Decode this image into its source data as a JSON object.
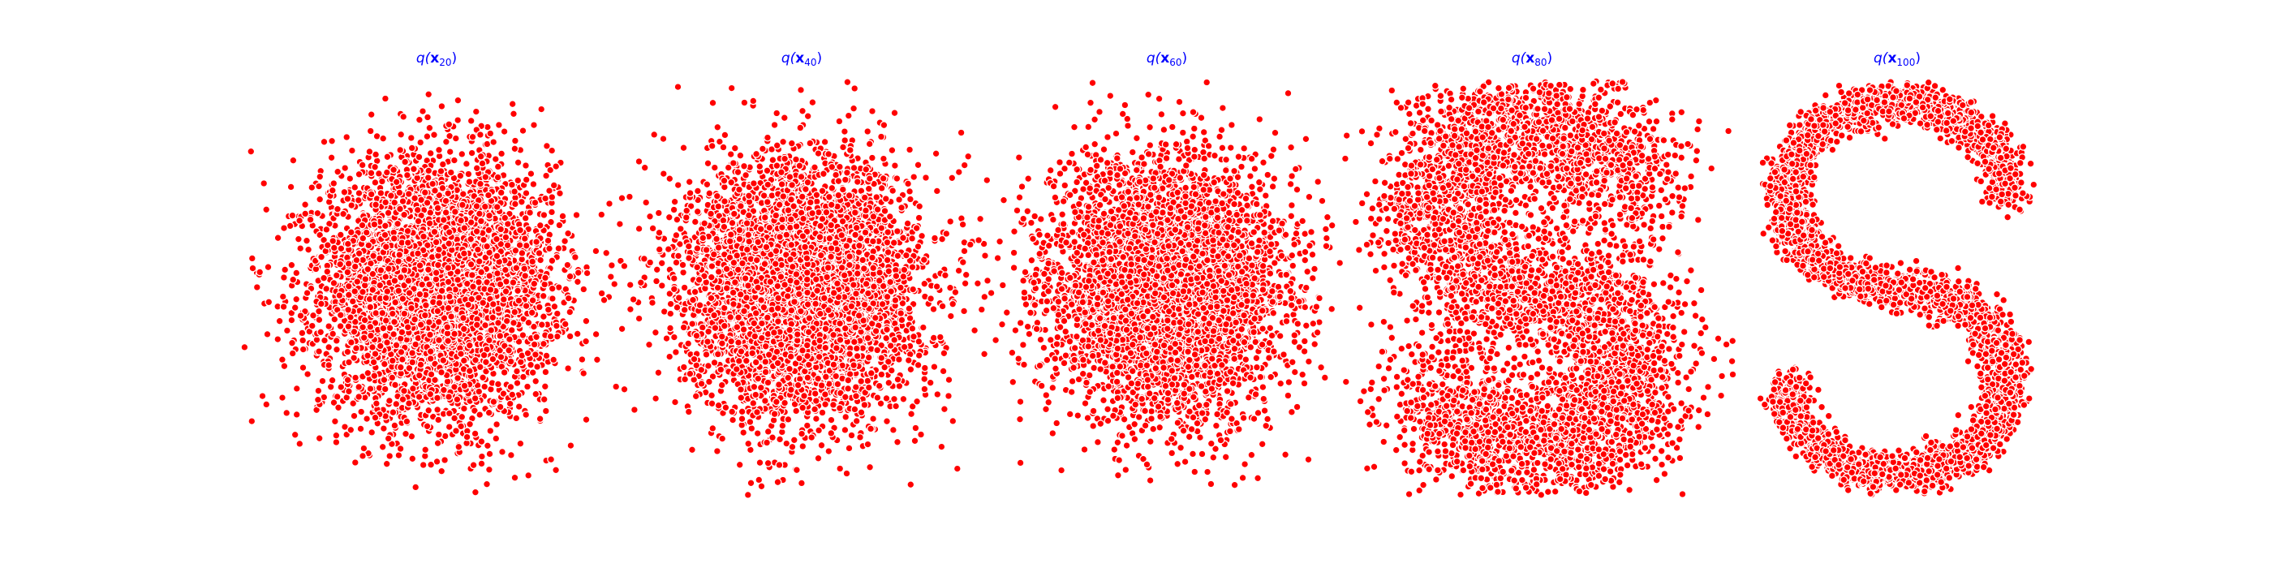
{
  "figure": {
    "marker_color": "#ff0000",
    "marker_edge_color": "#ffffff",
    "title_color": "#0000ff"
  },
  "chart_data": [
    {
      "type": "scatter",
      "title_prefix": "q(",
      "title_sym": "x",
      "title_sub": "20",
      "title_suffix": ")",
      "distribution": "gaussian-blob",
      "approx_points": 5000,
      "xlim": [
        -1.8,
        1.8
      ],
      "ylim": [
        -1.9,
        1.9
      ],
      "grid": false,
      "axes_visible": false
    },
    {
      "type": "scatter",
      "title_prefix": "q(",
      "title_sym": "x",
      "title_sub": "40",
      "title_suffix": ")",
      "distribution": "gaussian-blob",
      "approx_points": 5000,
      "xlim": [
        -1.8,
        1.8
      ],
      "ylim": [
        -1.9,
        1.9
      ],
      "grid": false,
      "axes_visible": false
    },
    {
      "type": "scatter",
      "title_prefix": "q(",
      "title_sym": "x",
      "title_sub": "60",
      "title_suffix": ")",
      "distribution": "gaussian-blob",
      "approx_points": 5000,
      "xlim": [
        -1.8,
        1.8
      ],
      "ylim": [
        -1.9,
        1.9
      ],
      "grid": false,
      "axes_visible": false
    },
    {
      "type": "scatter",
      "title_prefix": "q(",
      "title_sym": "x",
      "title_sub": "80",
      "title_suffix": ")",
      "distribution": "blob-with-s-hint",
      "approx_points": 5000,
      "xlim": [
        -1.8,
        1.8
      ],
      "ylim": [
        -1.9,
        1.9
      ],
      "grid": false,
      "axes_visible": false
    },
    {
      "type": "scatter",
      "title_prefix": "q(",
      "title_sym": "x",
      "title_sub": "100",
      "title_suffix": ")",
      "distribution": "s-curve",
      "approx_points": 5000,
      "xlim": [
        -1.8,
        1.8
      ],
      "ylim": [
        -1.9,
        1.9
      ],
      "grid": false,
      "axes_visible": false
    }
  ]
}
